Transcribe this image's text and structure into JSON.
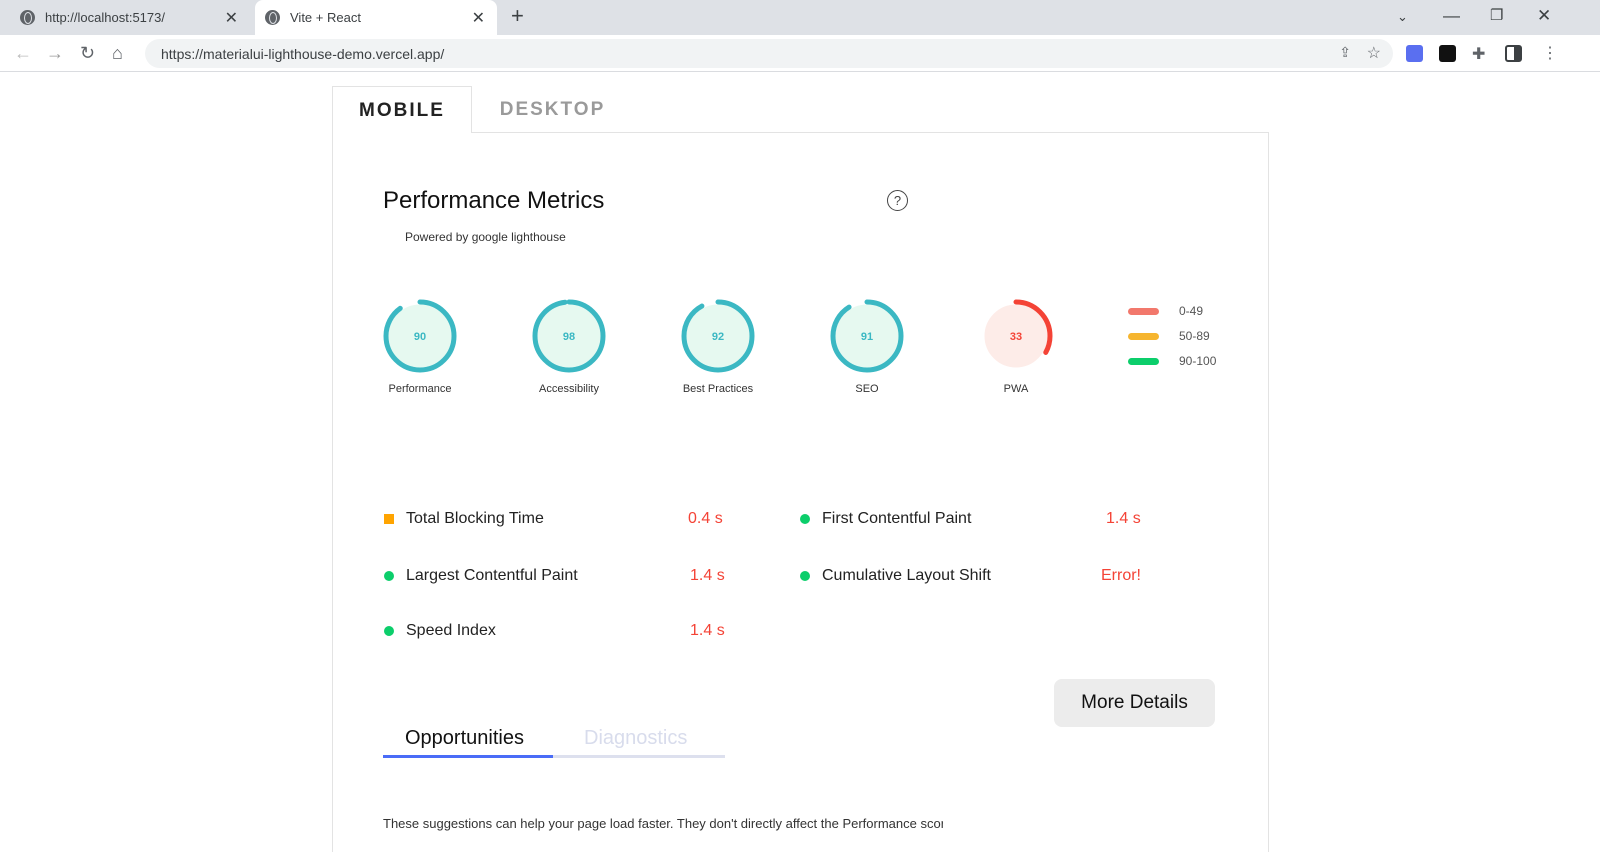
{
  "browser": {
    "tabs": [
      {
        "title": "http://localhost:5173/",
        "active": false
      },
      {
        "title": "Vite + React",
        "active": true
      }
    ],
    "url": "https://materialui-lighthouse-demo.vercel.app/"
  },
  "device_tabs": [
    {
      "label": "MOBILE",
      "active": true
    },
    {
      "label": "DESKTOP",
      "active": false
    }
  ],
  "header": {
    "title": "Performance Metrics",
    "subtitle": "Powered by google lighthouse"
  },
  "scores": [
    {
      "label": "Performance",
      "value": 90,
      "color": "#3bb8c3",
      "fill": "#e6f9f0",
      "text": "#3bb8c3"
    },
    {
      "label": "Accessibility",
      "value": 98,
      "color": "#3bb8c3",
      "fill": "#e6f9f0",
      "text": "#3bb8c3"
    },
    {
      "label": "Best Practices",
      "value": 92,
      "color": "#3bb8c3",
      "fill": "#e6f9f0",
      "text": "#3bb8c3"
    },
    {
      "label": "SEO",
      "value": 91,
      "color": "#3bb8c3",
      "fill": "#e6f9f0",
      "text": "#3bb8c3"
    },
    {
      "label": "PWA",
      "value": 33,
      "color": "#f44336",
      "fill": "#fdece8",
      "text": "#f44336"
    }
  ],
  "legend": [
    {
      "range": "0-49",
      "color": "#f2786c"
    },
    {
      "range": "50-89",
      "color": "#f6b52f"
    },
    {
      "range": "90-100",
      "color": "#0cce6b"
    }
  ],
  "metrics": [
    {
      "name": "Total Blocking Time",
      "value": "0.4 s",
      "indicator": "square",
      "color": "#ffa400"
    },
    {
      "name": "First Contentful Paint",
      "value": "1.4 s",
      "indicator": "circle",
      "color": "#0cce6b"
    },
    {
      "name": "Largest Contentful Paint",
      "value": "1.4 s",
      "indicator": "circle",
      "color": "#0cce6b"
    },
    {
      "name": "Cumulative Layout Shift",
      "value": "Error!",
      "indicator": "circle",
      "color": "#0cce6b"
    },
    {
      "name": "Speed Index",
      "value": "1.4 s",
      "indicator": "circle",
      "color": "#0cce6b"
    }
  ],
  "more_details": "More Details",
  "section_tabs": [
    {
      "label": "Opportunities",
      "active": true
    },
    {
      "label": "Diagnostics",
      "active": false
    }
  ],
  "section_text": "These suggestions can help your page load faster. They don't directly affect the Performance score."
}
